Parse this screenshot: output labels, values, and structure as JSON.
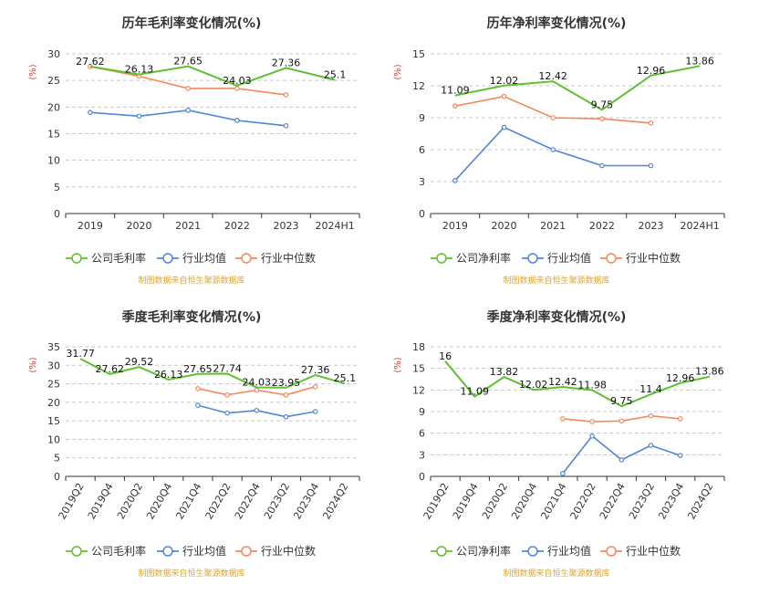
{
  "page": {
    "source_note": "制图数据来自恒生聚源数据库",
    "colors": {
      "company": "#5ec030",
      "industry_avg": "#4f86d9",
      "industry_median": "#f4885a",
      "unit": "#e03c31",
      "source": "#d9a53a"
    }
  },
  "chart_data": [
    {
      "type": "line",
      "title": "历年毛利率变化情况(%)",
      "ylabel": "(%)",
      "categories": [
        "2019",
        "2020",
        "2021",
        "2022",
        "2023",
        "2024H1"
      ],
      "ylim": [
        0,
        30
      ],
      "yticks": [
        0,
        5,
        10,
        15,
        20,
        25,
        30
      ],
      "grid": "horizontal-dashed",
      "legend_position": "bottom",
      "series": [
        {
          "name": "公司毛利率",
          "values": [
            27.62,
            26.13,
            27.65,
            24.03,
            27.36,
            25.1
          ],
          "labeled": true
        },
        {
          "name": "行业均值",
          "values": [
            19.0,
            18.3,
            19.4,
            17.5,
            16.5,
            null
          ]
        },
        {
          "name": "行业中位数",
          "values": [
            27.6,
            25.8,
            23.5,
            23.5,
            22.3,
            null
          ]
        }
      ]
    },
    {
      "type": "line",
      "title": "历年净利率变化情况(%)",
      "ylabel": "(%)",
      "categories": [
        "2019",
        "2020",
        "2021",
        "2022",
        "2023",
        "2024H1"
      ],
      "ylim": [
        0,
        15
      ],
      "yticks": [
        0,
        3,
        6,
        9,
        12,
        15
      ],
      "grid": "horizontal-dashed",
      "legend_position": "bottom",
      "series": [
        {
          "name": "公司净利率",
          "values": [
            11.09,
            12.02,
            12.42,
            9.75,
            12.96,
            13.86
          ],
          "labeled": true
        },
        {
          "name": "行业均值",
          "values": [
            3.1,
            8.1,
            6.0,
            4.5,
            4.5,
            null
          ]
        },
        {
          "name": "行业中位数",
          "values": [
            10.1,
            11.0,
            9.0,
            8.9,
            8.5,
            null
          ]
        }
      ]
    },
    {
      "type": "line",
      "title": "季度毛利率变化情况(%)",
      "ylabel": "(%)",
      "categories": [
        "2019Q2",
        "2019Q4",
        "2020Q2",
        "2020Q4",
        "2021Q4",
        "2022Q2",
        "2022Q4",
        "2023Q2",
        "2023Q4",
        "2024Q2"
      ],
      "rotate_x_labels": true,
      "ylim": [
        0,
        35
      ],
      "yticks": [
        0,
        5,
        10,
        15,
        20,
        25,
        30,
        35
      ],
      "grid": "horizontal-dashed",
      "legend_position": "bottom",
      "series": [
        {
          "name": "公司毛利率",
          "values": [
            31.77,
            27.62,
            29.52,
            26.13,
            27.65,
            27.74,
            24.03,
            23.95,
            27.36,
            25.1
          ],
          "labeled": true
        },
        {
          "name": "行业均值",
          "values": [
            null,
            null,
            null,
            null,
            19.2,
            17.1,
            17.8,
            16.1,
            17.5,
            null
          ]
        },
        {
          "name": "行业中位数",
          "values": [
            null,
            null,
            null,
            null,
            23.7,
            22.0,
            23.3,
            22.0,
            24.2,
            null
          ]
        }
      ]
    },
    {
      "type": "line",
      "title": "季度净利率变化情况(%)",
      "ylabel": "(%)",
      "categories": [
        "2019Q2",
        "2019Q4",
        "2020Q2",
        "2020Q4",
        "2021Q4",
        "2022Q2",
        "2022Q4",
        "2023Q2",
        "2023Q4",
        "2024Q2"
      ],
      "rotate_x_labels": true,
      "ylim": [
        0,
        18
      ],
      "yticks": [
        0,
        3,
        6,
        9,
        12,
        15,
        18
      ],
      "grid": "horizontal-dashed",
      "legend_position": "bottom",
      "series": [
        {
          "name": "公司净利率",
          "values": [
            16,
            11.09,
            13.82,
            12.02,
            12.42,
            11.98,
            9.75,
            11.4,
            12.96,
            13.86
          ],
          "labeled": true
        },
        {
          "name": "行业均值",
          "values": [
            null,
            null,
            null,
            null,
            0.4,
            5.6,
            2.3,
            4.3,
            2.9,
            null
          ]
        },
        {
          "name": "行业中位数",
          "values": [
            null,
            null,
            null,
            null,
            8.0,
            7.6,
            7.7,
            8.4,
            8.0,
            null
          ]
        }
      ]
    }
  ]
}
